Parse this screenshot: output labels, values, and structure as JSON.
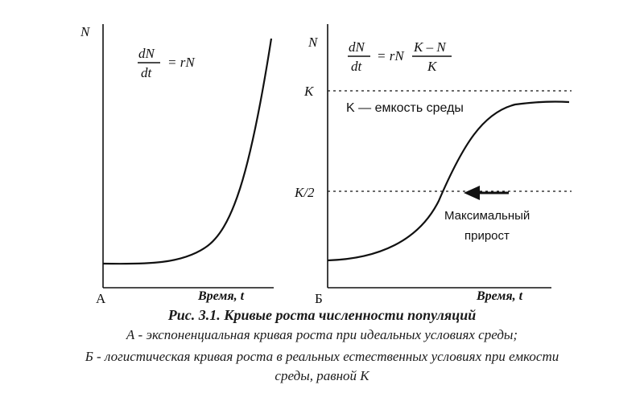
{
  "colors": {
    "ink": "#111111",
    "background": "#ffffff"
  },
  "panel_a": {
    "panel_letter": "А",
    "y_axis_label": "N",
    "x_axis_label": "Время, t",
    "formula": {
      "numerator": "dN",
      "denominator": "dt",
      "rhs": "= rN"
    },
    "curve": "exponential growth"
  },
  "panel_b": {
    "panel_letter": "Б",
    "y_axis_label": "N",
    "x_axis_label": "Время, t",
    "formula": {
      "numerator": "dN",
      "denominator": "dt",
      "rhs_prefix": "= rN",
      "fraction_numerator": "K – N",
      "fraction_denominator": "K"
    },
    "tick_k": "K",
    "tick_k_half": "K/2",
    "capacity_note": "K — емкость среды",
    "max_growth_label_line1": "Максимальный",
    "max_growth_label_line2": "прирост",
    "curve": "logistic growth",
    "arrow_icon": "left-arrow-icon"
  },
  "caption": {
    "title": "Рис. 3.1. Кривые роста численности популяций",
    "line_a": "А - экспоненциальная кривая роста при идеальных условиях среды;",
    "line_b1": "Б - логистическая кривая роста в реальных естественных условиях при емкости",
    "line_b2": "среды, равной К"
  }
}
